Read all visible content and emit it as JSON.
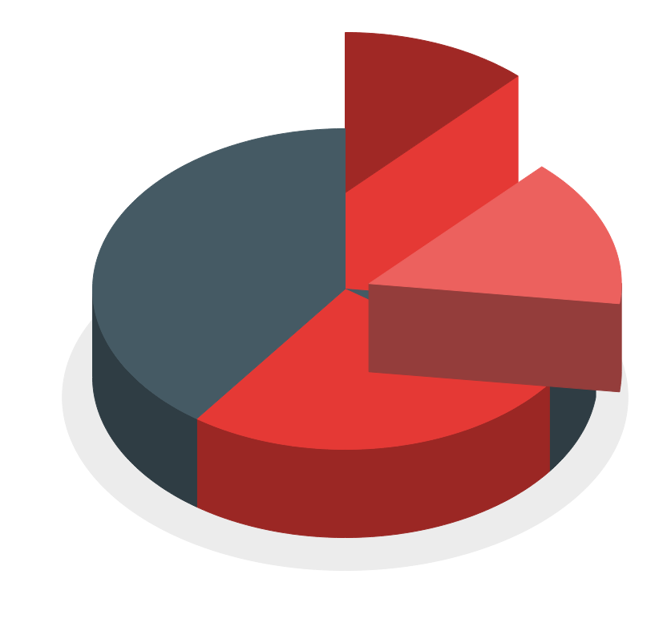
{
  "chart_data": {
    "type": "pie",
    "values": [
      12,
      15,
      8,
      25,
      40
    ],
    "colors": [
      "#e53935",
      "#ec615e",
      "#455a64",
      "#e53935",
      "#455a64"
    ]
  }
}
